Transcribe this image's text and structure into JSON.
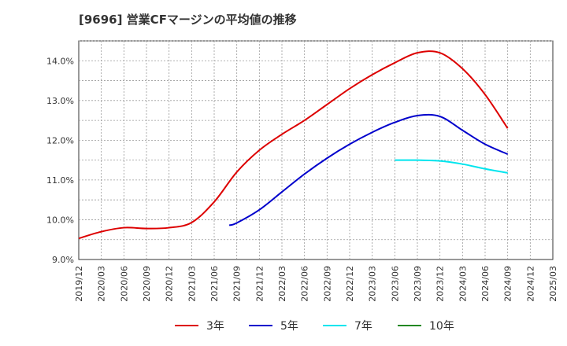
{
  "title": "[9696]  営業CFマージンの平均値の推移",
  "chart_data": {
    "type": "line",
    "title": "[9696]  営業CFマージンの平均値の推移",
    "xlabel": "",
    "ylabel": "",
    "ylim": [
      9.0,
      14.5
    ],
    "y_ticks": [
      "9.0%",
      "10.0%",
      "11.0%",
      "12.0%",
      "13.0%",
      "14.0%"
    ],
    "x_ticks": [
      "2019/12",
      "2020/03",
      "2020/06",
      "2020/09",
      "2020/12",
      "2021/03",
      "2021/06",
      "2021/09",
      "2021/12",
      "2022/03",
      "2022/06",
      "2022/09",
      "2022/12",
      "2023/03",
      "2023/06",
      "2023/09",
      "2023/12",
      "2024/03",
      "2024/06",
      "2024/09",
      "2024/12",
      "2025/03"
    ],
    "grid": true,
    "legend_position": "bottom",
    "series": [
      {
        "name": "3年",
        "color": "#dd0000",
        "points": [
          [
            "2019/12",
            9.53
          ],
          [
            "2020/03",
            9.7
          ],
          [
            "2020/06",
            9.8
          ],
          [
            "2020/09",
            9.78
          ],
          [
            "2020/12",
            9.8
          ],
          [
            "2021/03",
            9.93
          ],
          [
            "2021/06",
            10.45
          ],
          [
            "2021/09",
            11.2
          ],
          [
            "2021/12",
            11.75
          ],
          [
            "2022/03",
            12.15
          ],
          [
            "2022/06",
            12.5
          ],
          [
            "2022/09",
            12.9
          ],
          [
            "2022/12",
            13.3
          ],
          [
            "2023/03",
            13.65
          ],
          [
            "2023/06",
            13.95
          ],
          [
            "2023/09",
            14.2
          ],
          [
            "2023/12",
            14.2
          ],
          [
            "2024/03",
            13.8
          ],
          [
            "2024/06",
            13.15
          ],
          [
            "2024/09",
            12.3
          ]
        ]
      },
      {
        "name": "5年",
        "color": "#0000cc",
        "points": [
          [
            "2021/08",
            9.86
          ],
          [
            "2021/09",
            9.92
          ],
          [
            "2021/12",
            10.25
          ],
          [
            "2022/03",
            10.7
          ],
          [
            "2022/06",
            11.15
          ],
          [
            "2022/09",
            11.55
          ],
          [
            "2022/12",
            11.9
          ],
          [
            "2023/03",
            12.2
          ],
          [
            "2023/06",
            12.45
          ],
          [
            "2023/09",
            12.62
          ],
          [
            "2023/12",
            12.6
          ],
          [
            "2024/03",
            12.25
          ],
          [
            "2024/06",
            11.9
          ],
          [
            "2024/09",
            11.65
          ]
        ]
      },
      {
        "name": "7年",
        "color": "#00e5ee",
        "points": [
          [
            "2023/06",
            11.5
          ],
          [
            "2023/09",
            11.5
          ],
          [
            "2023/12",
            11.48
          ],
          [
            "2024/03",
            11.4
          ],
          [
            "2024/06",
            11.28
          ],
          [
            "2024/09",
            11.18
          ]
        ]
      },
      {
        "name": "10年",
        "color": "#228822",
        "points": []
      }
    ]
  }
}
